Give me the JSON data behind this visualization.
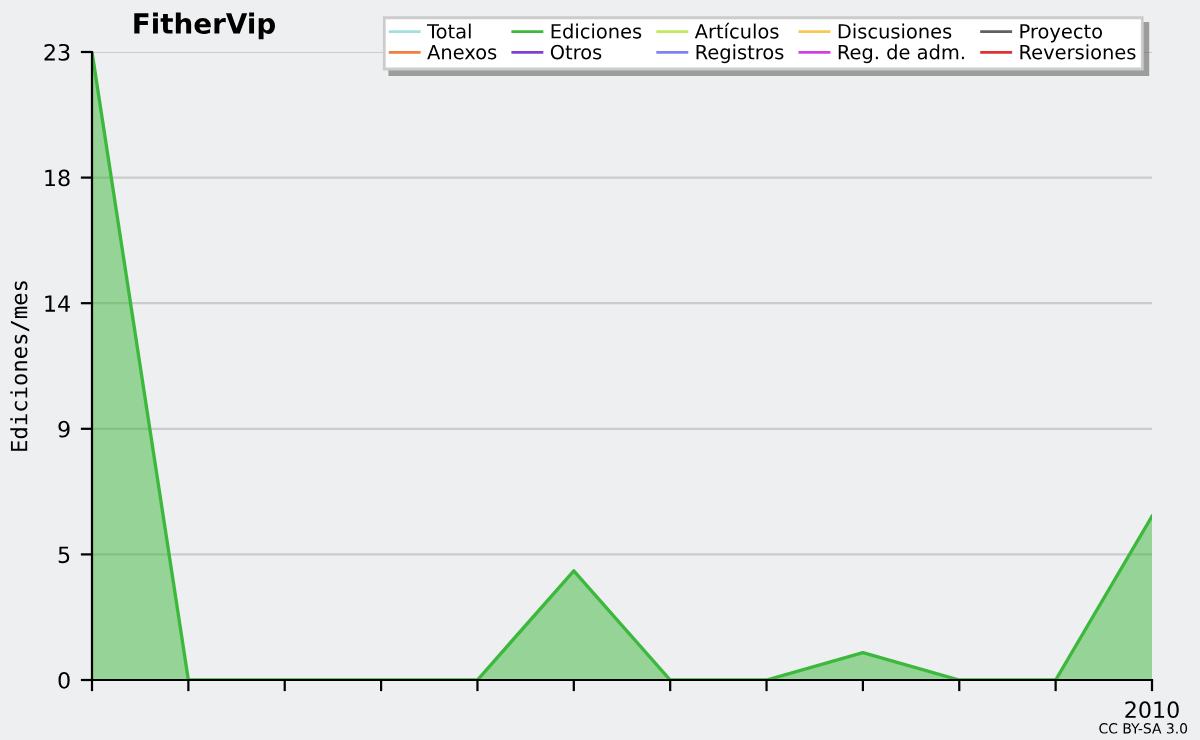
{
  "chart_data": {
    "type": "area",
    "title": "FitherVip",
    "ylabel": "Ediciones/mes",
    "categories": [
      null,
      null,
      null,
      null,
      null,
      null,
      null,
      null,
      null,
      null,
      null,
      "2010"
    ],
    "series": [
      {
        "name": "Total",
        "color": "#a0e0e0",
        "values": [
          null,
          null,
          null,
          null,
          null,
          null,
          null,
          null,
          null,
          null,
          null,
          null
        ]
      },
      {
        "name": "Anexos",
        "color": "#f08040",
        "values": [
          null,
          null,
          null,
          null,
          null,
          null,
          null,
          null,
          null,
          null,
          null,
          null
        ]
      },
      {
        "name": "Ediciones",
        "color": "#3cb83c",
        "values": [
          23,
          0,
          0,
          0,
          0,
          4,
          0,
          0,
          1,
          0,
          0,
          6
        ]
      },
      {
        "name": "Otros",
        "color": "#8040d0",
        "values": [
          null,
          null,
          null,
          null,
          null,
          null,
          null,
          null,
          null,
          null,
          null,
          null
        ]
      },
      {
        "name": "Artículos",
        "color": "#c0e860",
        "values": [
          null,
          null,
          null,
          null,
          null,
          null,
          null,
          null,
          null,
          null,
          null,
          null
        ]
      },
      {
        "name": "Registros",
        "color": "#8080f0",
        "values": [
          null,
          null,
          null,
          null,
          null,
          null,
          null,
          null,
          null,
          null,
          null,
          null
        ]
      },
      {
        "name": "Discusiones",
        "color": "#f8c850",
        "values": [
          null,
          null,
          null,
          null,
          null,
          null,
          null,
          null,
          null,
          null,
          null,
          null
        ]
      },
      {
        "name": "Reg. de adm.",
        "color": "#d040e0",
        "values": [
          null,
          null,
          null,
          null,
          null,
          null,
          null,
          null,
          null,
          null,
          null,
          null
        ]
      },
      {
        "name": "Proyecto",
        "color": "#606060",
        "values": [
          null,
          null,
          null,
          null,
          null,
          null,
          null,
          null,
          null,
          null,
          null,
          null
        ]
      },
      {
        "name": "Reversiones",
        "color": "#e03030",
        "values": [
          null,
          null,
          null,
          null,
          null,
          null,
          null,
          null,
          null,
          null,
          null,
          null
        ]
      }
    ],
    "ylim": [
      0,
      23
    ],
    "yticks": [
      0,
      {
        "value": 4.6,
        "label": "5"
      },
      {
        "value": 9.2,
        "label": "9"
      },
      {
        "value": 13.8,
        "label": "14"
      },
      {
        "value": 18.4,
        "label": "18"
      },
      23
    ],
    "grid": "y",
    "legend": "top right",
    "annotations": [
      "CC BY-SA 3.0"
    ]
  }
}
